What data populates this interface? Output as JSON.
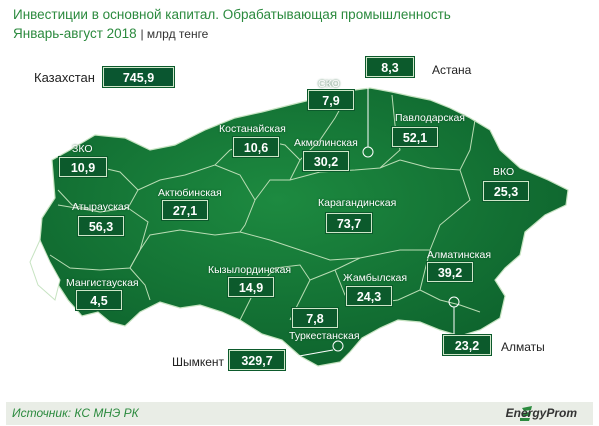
{
  "header": {
    "title": "Инвестиции в основной капитал. Обрабатывающая промышленность",
    "period": "Январь-август 2018",
    "unit": "млрд тенге"
  },
  "total": {
    "label": "Казахстан",
    "value": "745,9"
  },
  "regions": {
    "zko": {
      "label": "ЗКО",
      "value": "10,9"
    },
    "atyrau": {
      "label": "Атырауская",
      "value": "56,3"
    },
    "mangistau": {
      "label": "Мангистауская",
      "value": "4,5"
    },
    "aktobe": {
      "label": "Актюбинская",
      "value": "27,1"
    },
    "kostanay": {
      "label": "Костанайская",
      "value": "10,6"
    },
    "sko": {
      "label": "СКО",
      "value": "7,9"
    },
    "akmola": {
      "label": "Акмолинская",
      "value": "30,2"
    },
    "pavlodar": {
      "label": "Павлодарская",
      "value": "52,1"
    },
    "vko": {
      "label": "ВКО",
      "value": "25,3"
    },
    "karaganda": {
      "label": "Карагандинская",
      "value": "73,7"
    },
    "kyzylorda": {
      "label": "Кызылординская",
      "value": "14,9"
    },
    "zhambyl": {
      "label": "Жамбылская",
      "value": "24,3"
    },
    "almaty_region": {
      "label": "Алматинская",
      "value": "39,2"
    },
    "turkestan": {
      "label": "Туркестанская",
      "value": "7,8"
    }
  },
  "cities": {
    "astana": {
      "label": "Астана",
      "value": "8,3"
    },
    "almaty": {
      "label": "Алматы",
      "value": "23,2"
    },
    "shymkent": {
      "label": "Шымкент",
      "value": "329,7"
    }
  },
  "footer": {
    "source": "Источник: КС МНЭ РК",
    "brand": "EnergyProm"
  },
  "colors": {
    "map_fill": "#0e6b2f",
    "map_fill_light": "#1b7d3c",
    "border": "#a9d4a6",
    "box_fill": "#0c5a2c",
    "accent_text": "#2b8a3e"
  }
}
